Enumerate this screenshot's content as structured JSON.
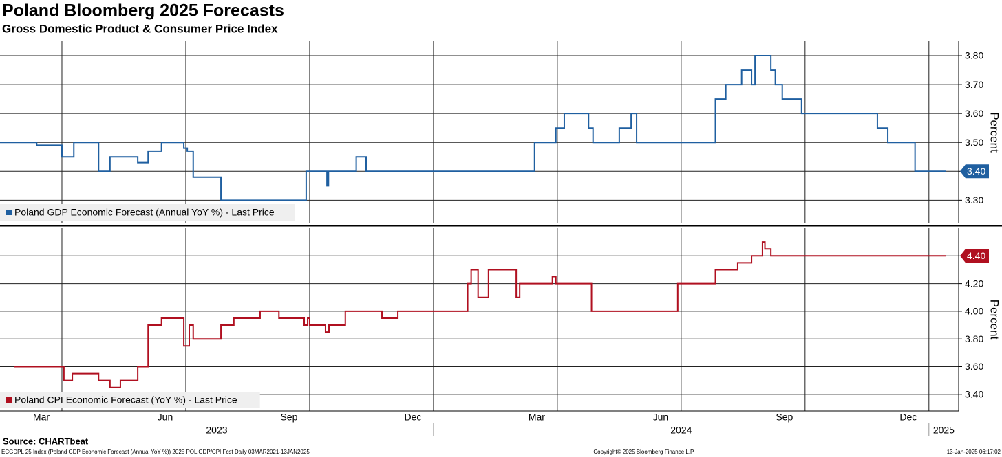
{
  "title": "Poland Bloomberg 2025 Forecasts",
  "subtitle": "Gross Domestic Product & Consumer Price Index",
  "chart_data": {
    "type": "line",
    "drawstyle": "steps-post",
    "grid": true,
    "xlim": [
      2023.125,
      2025.06
    ],
    "xticks": [
      {
        "value": 2023.25,
        "label": "Mar"
      },
      {
        "value": 2023.5,
        "label": "Jun"
      },
      {
        "value": 2023.75,
        "label": "Sep"
      },
      {
        "value": 2024.0,
        "label": "Dec"
      },
      {
        "value": 2024.25,
        "label": "Mar"
      },
      {
        "value": 2024.5,
        "label": "Jun"
      },
      {
        "value": 2024.75,
        "label": "Sep"
      },
      {
        "value": 2025.0,
        "label": "Dec"
      }
    ],
    "years": [
      2023,
      2024,
      2025
    ],
    "panels": [
      {
        "ylabel": "Percent",
        "ylim": [
          3.22,
          3.85
        ],
        "yticks": [
          {
            "value": 3.3,
            "label": "3.30"
          },
          {
            "value": 3.4,
            "label": "3.40"
          },
          {
            "value": 3.5,
            "label": "3.50"
          },
          {
            "value": 3.6,
            "label": "3.60"
          },
          {
            "value": 3.7,
            "label": "3.70"
          },
          {
            "value": 3.8,
            "label": "3.80"
          }
        ],
        "series": [
          {
            "name": "Poland GDP Economic Forecast (Annual YoY %) - Last Price",
            "color": "#1f5fa0",
            "last_value_label": "3.40",
            "x": [
              2023.125,
              2023.199,
              2023.25,
              2023.274,
              2023.324,
              2023.347,
              2023.403,
              2023.424,
              2023.451,
              2023.496,
              2023.503,
              2023.515,
              2023.571,
              2023.743,
              2023.785,
              2023.788,
              2023.844,
              2023.864,
              2024.204,
              2024.247,
              2024.264,
              2024.313,
              2024.322,
              2024.375,
              2024.399,
              2024.41,
              2024.569,
              2024.59,
              2024.622,
              2024.642,
              2024.649,
              2024.681,
              2024.69,
              2024.704,
              2024.743,
              2024.896,
              2024.917,
              2024.972,
              2025.035
            ],
            "values": [
              3.5,
              3.49,
              3.45,
              3.5,
              3.4,
              3.45,
              3.43,
              3.47,
              3.5,
              3.48,
              3.47,
              3.38,
              3.3,
              3.4,
              3.35,
              3.4,
              3.45,
              3.4,
              3.5,
              3.55,
              3.6,
              3.55,
              3.5,
              3.55,
              3.6,
              3.5,
              3.65,
              3.7,
              3.75,
              3.7,
              3.8,
              3.75,
              3.7,
              3.65,
              3.6,
              3.55,
              3.5,
              3.4,
              3.4
            ]
          }
        ]
      },
      {
        "ylabel": "Percent",
        "ylim": [
          3.28,
          4.6
        ],
        "yticks": [
          {
            "value": 3.4,
            "label": "3.40"
          },
          {
            "value": 3.6,
            "label": "3.60"
          },
          {
            "value": 3.8,
            "label": "3.80"
          },
          {
            "value": 4.0,
            "label": "4.00"
          },
          {
            "value": 4.2,
            "label": "4.20"
          },
          {
            "value": 4.4,
            "label": "4.40"
          }
        ],
        "series": [
          {
            "name": "Poland CPI Economic Forecast (YoY %) - Last Price",
            "color": "#b01020",
            "last_value_label": "4.40",
            "x": [
              2023.153,
              2023.254,
              2023.271,
              2023.324,
              2023.347,
              2023.368,
              2023.403,
              2023.424,
              2023.451,
              2023.496,
              2023.507,
              2023.515,
              2023.571,
              2023.597,
              2023.65,
              2023.688,
              2023.739,
              2023.746,
              2023.75,
              2023.782,
              2023.789,
              2023.822,
              2023.896,
              2023.928,
              2024.069,
              2024.076,
              2024.09,
              2024.111,
              2024.167,
              2024.174,
              2024.24,
              2024.247,
              2024.319,
              2024.493,
              2024.569,
              2024.614,
              2024.642,
              2024.664,
              2024.669,
              2024.681,
              2025.035
            ],
            "values": [
              3.6,
              3.5,
              3.55,
              3.5,
              3.45,
              3.5,
              3.6,
              3.9,
              3.95,
              3.75,
              3.9,
              3.8,
              3.9,
              3.95,
              4.0,
              3.95,
              3.9,
              3.95,
              3.9,
              3.85,
              3.9,
              4.0,
              3.95,
              4.0,
              4.2,
              4.3,
              4.1,
              4.3,
              4.1,
              4.2,
              4.25,
              4.2,
              4.0,
              4.2,
              4.3,
              4.35,
              4.4,
              4.5,
              4.45,
              4.4,
              4.4
            ]
          }
        ]
      }
    ]
  },
  "footer": {
    "source": "Source: CHARTbeat",
    "left": "ECGDPL 25 Index (Poland GDP Economic Forecast (Annual YoY %)) 2025 POL GDP/CPI Fcst  Daily 03MAR2021-13JAN2025",
    "center": "Copyright© 2025 Bloomberg Finance L.P.",
    "right": "13-Jan-2025 06:17:02"
  }
}
